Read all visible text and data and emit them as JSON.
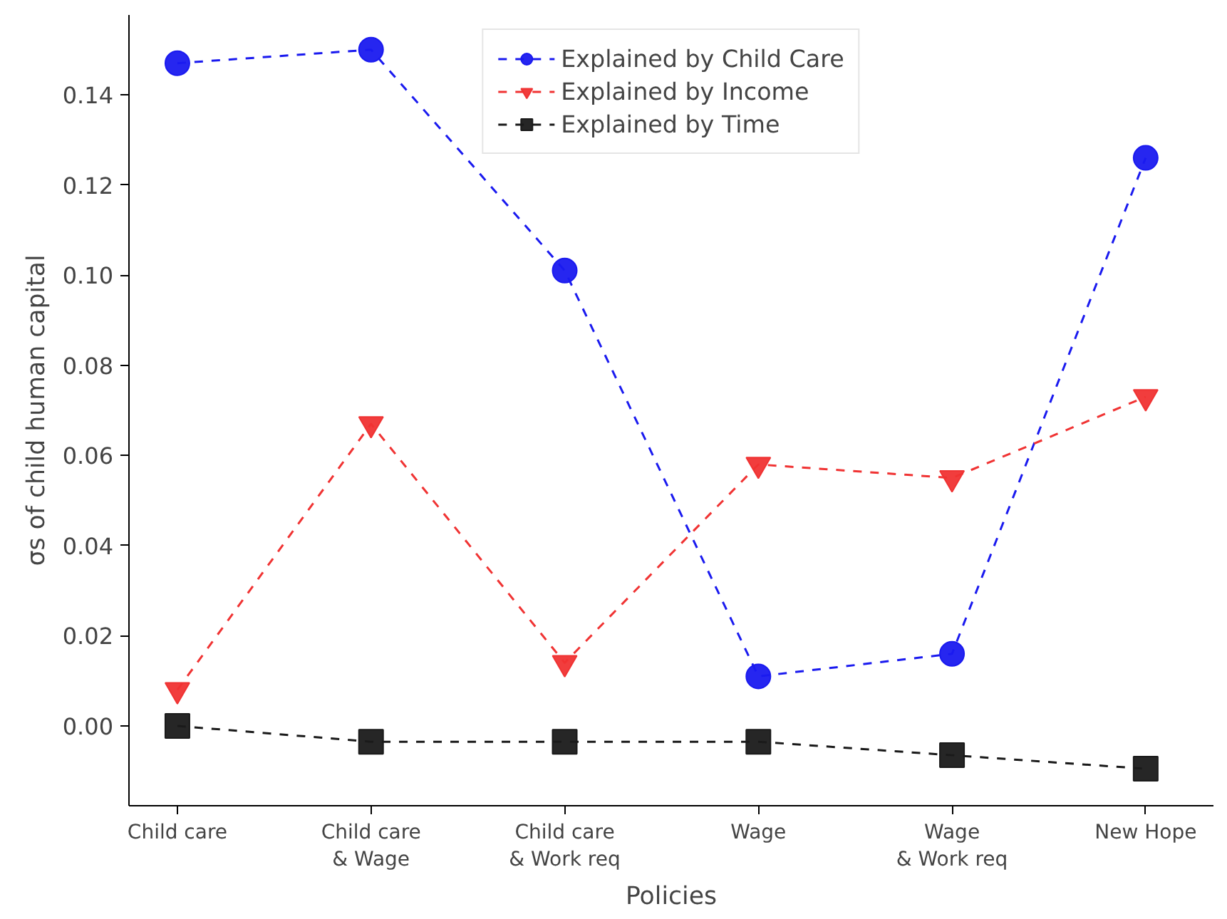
{
  "chart_data": {
    "type": "line",
    "xlabel": "Policies",
    "ylabel": "σs of child human capital",
    "categories": [
      "Child care",
      "Child care\n& Wage",
      "Child care\n& Work req",
      "Wage",
      "Wage\n& Work req",
      "New Hope"
    ],
    "series": [
      {
        "name": "Explained by Child Care",
        "color": "#1a1aef",
        "marker": "circle",
        "values": [
          0.147,
          0.15,
          0.101,
          0.011,
          0.016,
          0.126
        ]
      },
      {
        "name": "Explained by Income",
        "color": "#f03333",
        "marker": "triangle",
        "values": [
          0.008,
          0.067,
          0.014,
          0.058,
          0.055,
          0.073
        ]
      },
      {
        "name": "Explained by Time",
        "color": "#1a1a1a",
        "marker": "square",
        "values": [
          0.0,
          -0.0035,
          -0.0035,
          -0.0035,
          -0.0065,
          -0.0095
        ]
      }
    ],
    "ylim": [
      -0.0177,
      0.1577
    ],
    "yticks": [
      {
        "value": 0,
        "label": "0.00"
      },
      {
        "value": 0.02,
        "label": "0.02"
      },
      {
        "value": 0.04,
        "label": "0.04"
      },
      {
        "value": 0.06,
        "label": "0.06"
      },
      {
        "value": 0.08,
        "label": "0.08"
      },
      {
        "value": 0.1,
        "label": "0.10"
      },
      {
        "value": 0.12,
        "label": "0.12"
      },
      {
        "value": 0.14,
        "label": "0.14"
      }
    ],
    "line_style": "dashed",
    "grid": false,
    "legend": "top"
  }
}
